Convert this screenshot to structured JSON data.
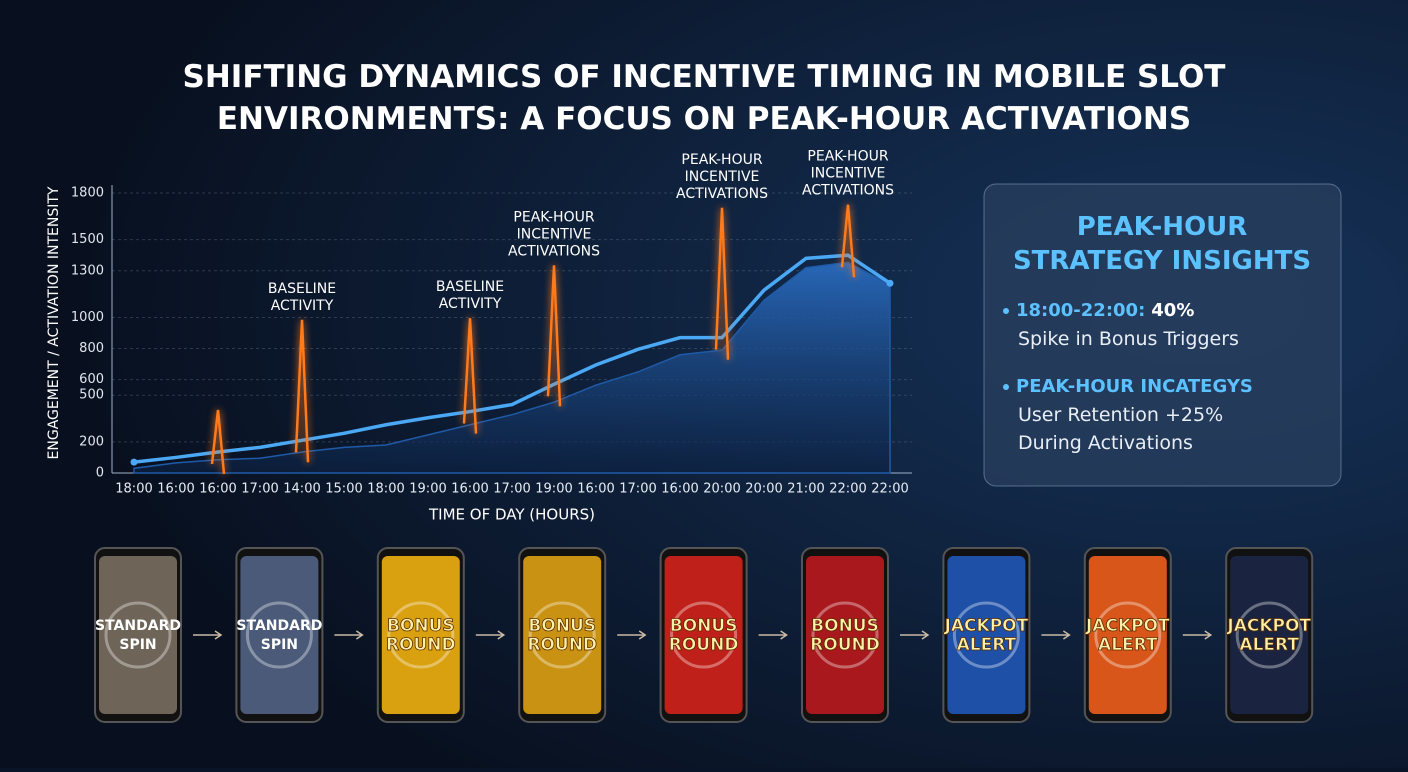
{
  "chart_data": {
    "type": "line",
    "title": "SHIFTING DYNAMICS OF INCENTIVE TIMING IN MOBILE SLOT ENVIRONMENTS: A FOCUS ON PEAK-HOUR ACTIVATIONS",
    "ylabel": "ENGAGEMENT / ACTIVATION INTENSITY",
    "xlabel": "TIME OF DAY (HOURS)",
    "categories": [
      "18:00",
      "16:00",
      "16:00",
      "17:00",
      "14:00",
      "15:00",
      "18:00",
      "19:00",
      "16:00",
      "17:00",
      "19:00",
      "16:00",
      "17:00",
      "16:00",
      "20:00",
      "20:00",
      "21:00",
      "22:00",
      "22:00"
    ],
    "ylim": [
      0,
      1800
    ],
    "yticks": [
      0,
      200,
      500,
      600,
      800,
      1000,
      1300,
      1500,
      1800
    ],
    "grid": true,
    "area": {
      "color": "#1f5aa8",
      "values": [
        30,
        65,
        85,
        95,
        135,
        165,
        180,
        245,
        310,
        375,
        455,
        565,
        650,
        760,
        790,
        1110,
        1320,
        1355,
        1210
      ]
    },
    "line": {
      "color": "#4aa8f5",
      "values": [
        70,
        100,
        135,
        165,
        210,
        255,
        310,
        355,
        395,
        440,
        570,
        695,
        795,
        870,
        870,
        1175,
        1380,
        1400,
        1220
      ]
    },
    "spikes": {
      "color": "#ff7a1a",
      "values": [
        null,
        null,
        405,
        null,
        985,
        null,
        null,
        null,
        995,
        null,
        1335,
        null,
        null,
        null,
        1705,
        null,
        null,
        1725,
        null
      ]
    },
    "annotations": [
      "BASELINE ACTIVITY",
      "BASELINE ACTIVITY",
      "PEAK-HOUR INCENTIVE ACTIVATIONS",
      "PEAK-HOUR INCENTIVE ACTIVATIONS",
      "PEAK-HOUR INCENTIVE ACTIVATIONS"
    ]
  },
  "panel": {
    "title": "PEAK-HOUR STRATEGY INSIGHTS",
    "items": [
      {
        "label": "18:00-22:00:",
        "value": "40%",
        "text": "Spike in Bonus Triggers"
      },
      {
        "label": "PEAK-HOUR INCATEGYS",
        "text": "User Retention +25% During Activations"
      }
    ]
  },
  "phones": [
    {
      "label": "STANDARD SPIN",
      "color": "#6e6458"
    },
    {
      "label": "STANDARD SPIN",
      "color": "#4a5a78"
    },
    {
      "label": "BONUS ROUND",
      "color": "#d9a010"
    },
    {
      "label": "BONUS ROUND",
      "color": "#c99212"
    },
    {
      "label": "BONUS ROUND",
      "color": "#c0201a"
    },
    {
      "label": "BONUS ROUND",
      "color": "#a8181c"
    },
    {
      "label": "JACKPOT ALERT",
      "color": "#1e50a8"
    },
    {
      "label": "JACKPOT ALERT",
      "color": "#d8561a"
    },
    {
      "label": "JACKPOT ALERT",
      "color": "#1a2440"
    }
  ]
}
